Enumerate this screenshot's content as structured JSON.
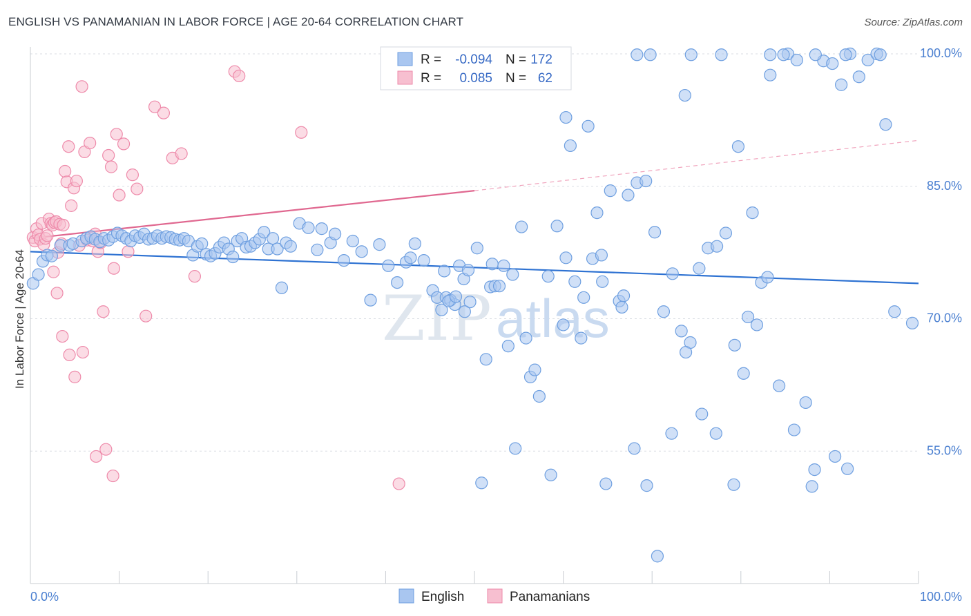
{
  "header": {
    "title": "ENGLISH VS PANAMANIAN IN LABOR FORCE | AGE 20-64 CORRELATION CHART",
    "source": "Source: ZipAtlas.com"
  },
  "watermark": {
    "zip": "ZIP",
    "atlas": "atlas"
  },
  "chart_data": {
    "type": "scatter",
    "title": "ENGLISH VS PANAMANIAN IN LABOR FORCE | AGE 20-64 CORRELATION CHART",
    "ylabel": "In Labor Force | Age 20-64",
    "xlabel": "",
    "xlim": [
      0,
      100
    ],
    "ylim": [
      40,
      100
    ],
    "x_tick_labels": {
      "left": "0.0%",
      "right": "100.0%"
    },
    "y_ticks": [
      {
        "value": 55,
        "label": "55.0%"
      },
      {
        "value": 70,
        "label": "70.0%"
      },
      {
        "value": 85,
        "label": "85.0%"
      },
      {
        "value": 100,
        "label": "100.0%"
      }
    ],
    "grid": true,
    "legend_position": "top-center",
    "legend": {
      "rows": [
        {
          "r_label": "R =",
          "r_value": "-0.094",
          "n_label": "N =",
          "n_value": "172"
        },
        {
          "r_label": "R =",
          "r_value": "0.085",
          "n_label": "N =",
          "n_value": "62"
        }
      ],
      "bottom": [
        "English",
        "Panamanians"
      ]
    },
    "colors": {
      "english_fill": "#a9c6f0",
      "english_stroke": "#6e9fe0",
      "english_line": "#2e72d2",
      "panamanian_fill": "#f7bfd0",
      "panamanian_stroke": "#ee8aaa",
      "panamanian_line": "#e06890"
    },
    "series": [
      {
        "name": "English",
        "trend": {
          "x0": 0,
          "y0": 77.6,
          "x1": 100,
          "y1": 74.0
        },
        "points": [
          [
            0.3,
            74
          ],
          [
            0.9,
            75
          ],
          [
            1.4,
            76.5
          ],
          [
            1.9,
            77.2
          ],
          [
            2.4,
            77.1
          ],
          [
            3.4,
            78.3
          ],
          [
            4.4,
            78.3
          ],
          [
            4.8,
            78.5
          ],
          [
            5.8,
            78.8
          ],
          [
            6.3,
            79.1
          ],
          [
            6.8,
            79.3
          ],
          [
            7.3,
            79.0
          ],
          [
            7.8,
            78.7
          ],
          [
            8.3,
            79.1
          ],
          [
            8.8,
            78.9
          ],
          [
            9.3,
            79.3
          ],
          [
            9.8,
            79.7
          ],
          [
            10.3,
            79.4
          ],
          [
            10.8,
            79.1
          ],
          [
            11.3,
            78.8
          ],
          [
            11.8,
            79.4
          ],
          [
            12.3,
            79.2
          ],
          [
            12.8,
            79.6
          ],
          [
            13.3,
            79.0
          ],
          [
            13.8,
            79.1
          ],
          [
            14.3,
            79.4
          ],
          [
            14.8,
            79.1
          ],
          [
            15.3,
            79.3
          ],
          [
            15.8,
            79.2
          ],
          [
            16.3,
            79.0
          ],
          [
            16.8,
            78.9
          ],
          [
            17.3,
            79.1
          ],
          [
            17.8,
            78.8
          ],
          [
            18.3,
            77.2
          ],
          [
            18.8,
            78.2
          ],
          [
            19.3,
            78.5
          ],
          [
            19.8,
            77.3
          ],
          [
            20.3,
            77.1
          ],
          [
            20.8,
            77.4
          ],
          [
            21.3,
            78.1
          ],
          [
            21.8,
            78.6
          ],
          [
            22.3,
            77.9
          ],
          [
            22.8,
            77.0
          ],
          [
            23.3,
            78.8
          ],
          [
            23.8,
            79.1
          ],
          [
            24.3,
            78.1
          ],
          [
            24.8,
            78.2
          ],
          [
            25.3,
            78.6
          ],
          [
            25.8,
            79.0
          ],
          [
            26.3,
            79.8
          ],
          [
            26.8,
            77.9
          ],
          [
            27.3,
            79.1
          ],
          [
            27.8,
            77.9
          ],
          [
            28.3,
            73.5
          ],
          [
            28.8,
            78.6
          ],
          [
            29.3,
            78.2
          ],
          [
            30.3,
            80.8
          ],
          [
            31.3,
            80.3
          ],
          [
            32.3,
            77.8
          ],
          [
            32.8,
            80.2
          ],
          [
            33.8,
            78.6
          ],
          [
            34.3,
            79.6
          ],
          [
            35.3,
            76.6
          ],
          [
            36.3,
            78.8
          ],
          [
            37.3,
            77.6
          ],
          [
            38.3,
            72.1
          ],
          [
            39.3,
            78.4
          ],
          [
            40.3,
            76.0
          ],
          [
            41.3,
            74.1
          ],
          [
            42.3,
            76.4
          ],
          [
            42.8,
            76.9
          ],
          [
            43.3,
            78.5
          ],
          [
            44.3,
            76.6
          ],
          [
            45.3,
            73.2
          ],
          [
            45.8,
            72.4
          ],
          [
            46.3,
            71.0
          ],
          [
            46.8,
            72.4
          ],
          [
            47.3,
            72.1
          ],
          [
            47.8,
            71.6
          ],
          [
            48.3,
            76.0
          ],
          [
            48.8,
            74.5
          ],
          [
            49.3,
            75.5
          ],
          [
            50.3,
            78.0
          ],
          [
            51.3,
            65.4
          ],
          [
            51.8,
            73.6
          ],
          [
            52.3,
            73.7
          ],
          [
            52.8,
            73.7
          ],
          [
            53.3,
            76.0
          ],
          [
            54.3,
            75.0
          ],
          [
            55.3,
            80.4
          ],
          [
            55.8,
            67.8
          ],
          [
            56.3,
            63.4
          ],
          [
            56.8,
            64.2
          ],
          [
            57.3,
            61.2
          ],
          [
            58.3,
            74.8
          ],
          [
            59.3,
            80.5
          ],
          [
            60.3,
            76.9
          ],
          [
            61.3,
            74.2
          ],
          [
            62.3,
            72.4
          ],
          [
            63.3,
            76.8
          ],
          [
            63.8,
            82.0
          ],
          [
            64.3,
            77.2
          ],
          [
            65.3,
            84.5
          ],
          [
            66.3,
            72.0
          ],
          [
            66.8,
            72.6
          ],
          [
            67.3,
            84.0
          ],
          [
            68.3,
            85.4
          ],
          [
            69.3,
            85.6
          ],
          [
            70.3,
            79.8
          ],
          [
            71.3,
            70.8
          ],
          [
            72.3,
            75.1
          ],
          [
            73.3,
            68.6
          ],
          [
            74.3,
            67.3
          ],
          [
            75.3,
            75.7
          ],
          [
            76.3,
            78.0
          ],
          [
            77.3,
            78.2
          ],
          [
            78.3,
            79.7
          ],
          [
            79.3,
            67.0
          ],
          [
            80.3,
            63.8
          ],
          [
            81.3,
            82.0
          ],
          [
            81.8,
            69.3
          ],
          [
            82.3,
            74.1
          ],
          [
            83.3,
            97.6
          ],
          [
            84.3,
            62.4
          ],
          [
            85.3,
            100.0
          ],
          [
            86.3,
            99.3
          ],
          [
            87.3,
            60.5
          ],
          [
            88.3,
            52.9
          ],
          [
            89.3,
            99.2
          ],
          [
            90.3,
            98.9
          ],
          [
            91.3,
            96.5
          ],
          [
            92.3,
            100.0
          ],
          [
            93.3,
            97.4
          ],
          [
            94.3,
            99.3
          ],
          [
            95.3,
            100.0
          ],
          [
            96.3,
            92.0
          ],
          [
            97.3,
            70.8
          ],
          [
            99.3,
            69.5
          ],
          [
            58.7,
            99.4
          ],
          [
            60.3,
            92.8
          ],
          [
            60.8,
            89.6
          ],
          [
            62.8,
            91.8
          ],
          [
            68.3,
            99.9
          ],
          [
            69.8,
            99.9
          ],
          [
            74.4,
            99.9
          ],
          [
            77.8,
            99.9
          ],
          [
            83.3,
            99.9
          ],
          [
            84.8,
            99.9
          ],
          [
            88.4,
            99.9
          ],
          [
            91.8,
            99.9
          ],
          [
            95.7,
            99.9
          ],
          [
            73.7,
            95.3
          ],
          [
            79.7,
            89.5
          ],
          [
            47.1,
            72.0
          ],
          [
            46.6,
            75.4
          ],
          [
            52.0,
            76.2
          ],
          [
            53.8,
            66.9
          ],
          [
            49.5,
            71.9
          ],
          [
            60.0,
            69.3
          ],
          [
            62.0,
            67.8
          ],
          [
            64.4,
            74.2
          ],
          [
            66.6,
            71.3
          ],
          [
            68.0,
            55.3
          ],
          [
            69.4,
            51.1
          ],
          [
            70.6,
            43.1
          ],
          [
            72.2,
            57.0
          ],
          [
            73.8,
            66.2
          ],
          [
            75.6,
            59.2
          ],
          [
            77.2,
            57.0
          ],
          [
            79.2,
            51.2
          ],
          [
            80.8,
            70.2
          ],
          [
            83.0,
            74.7
          ],
          [
            86.0,
            57.4
          ],
          [
            88.0,
            51.0
          ],
          [
            90.6,
            54.4
          ],
          [
            92.0,
            53.0
          ],
          [
            64.8,
            51.3
          ],
          [
            58.6,
            52.3
          ],
          [
            54.6,
            55.3
          ],
          [
            50.8,
            51.4
          ],
          [
            48.9,
            70.8
          ],
          [
            47.9,
            72.5
          ]
        ]
      },
      {
        "name": "Panamanians",
        "trend_solid": {
          "x0": 0,
          "y0": 79.1,
          "x1": 50,
          "y1": 84.5
        },
        "trend_dashed": {
          "x0": 50,
          "y0": 84.5,
          "x1": 100,
          "y1": 90.2
        },
        "points": [
          [
            0.3,
            79.2
          ],
          [
            0.5,
            78.8
          ],
          [
            0.7,
            80.2
          ],
          [
            0.9,
            79.5
          ],
          [
            1.1,
            79.0
          ],
          [
            1.3,
            80.8
          ],
          [
            1.5,
            78.4
          ],
          [
            1.7,
            79.1
          ],
          [
            1.9,
            79.4
          ],
          [
            2.1,
            81.3
          ],
          [
            2.3,
            80.8
          ],
          [
            2.5,
            80.6
          ],
          [
            2.7,
            80.9
          ],
          [
            2.9,
            81.0
          ],
          [
            3.1,
            77.5
          ],
          [
            3.3,
            80.7
          ],
          [
            3.5,
            78.5
          ],
          [
            3.7,
            80.6
          ],
          [
            3.9,
            86.7
          ],
          [
            4.1,
            85.5
          ],
          [
            4.3,
            89.5
          ],
          [
            4.6,
            82.8
          ],
          [
            4.9,
            84.8
          ],
          [
            5.2,
            85.6
          ],
          [
            5.5,
            78.3
          ],
          [
            5.8,
            96.3
          ],
          [
            6.1,
            88.9
          ],
          [
            6.4,
            78.9
          ],
          [
            6.7,
            89.9
          ],
          [
            7.0,
            78.8
          ],
          [
            7.3,
            79.6
          ],
          [
            7.6,
            77.6
          ],
          [
            7.9,
            78.6
          ],
          [
            8.2,
            70.8
          ],
          [
            8.5,
            55.2
          ],
          [
            8.8,
            88.5
          ],
          [
            9.1,
            87.2
          ],
          [
            9.4,
            75.7
          ],
          [
            9.7,
            90.9
          ],
          [
            10.0,
            84.0
          ],
          [
            10.5,
            89.8
          ],
          [
            11.0,
            77.6
          ],
          [
            11.5,
            86.3
          ],
          [
            12.0,
            84.7
          ],
          [
            13.0,
            70.3
          ],
          [
            14.0,
            94.0
          ],
          [
            15.0,
            93.3
          ],
          [
            16.0,
            88.2
          ],
          [
            17.0,
            88.7
          ],
          [
            18.5,
            74.8
          ],
          [
            23.0,
            98.0
          ],
          [
            23.5,
            97.5
          ],
          [
            30.5,
            91.1
          ],
          [
            41.5,
            51.3
          ],
          [
            2.6,
            75.3
          ],
          [
            3.0,
            72.9
          ],
          [
            3.6,
            68.0
          ],
          [
            4.4,
            65.9
          ],
          [
            5.0,
            63.4
          ],
          [
            5.9,
            66.2
          ],
          [
            7.4,
            54.4
          ],
          [
            9.3,
            52.2
          ]
        ]
      }
    ]
  }
}
